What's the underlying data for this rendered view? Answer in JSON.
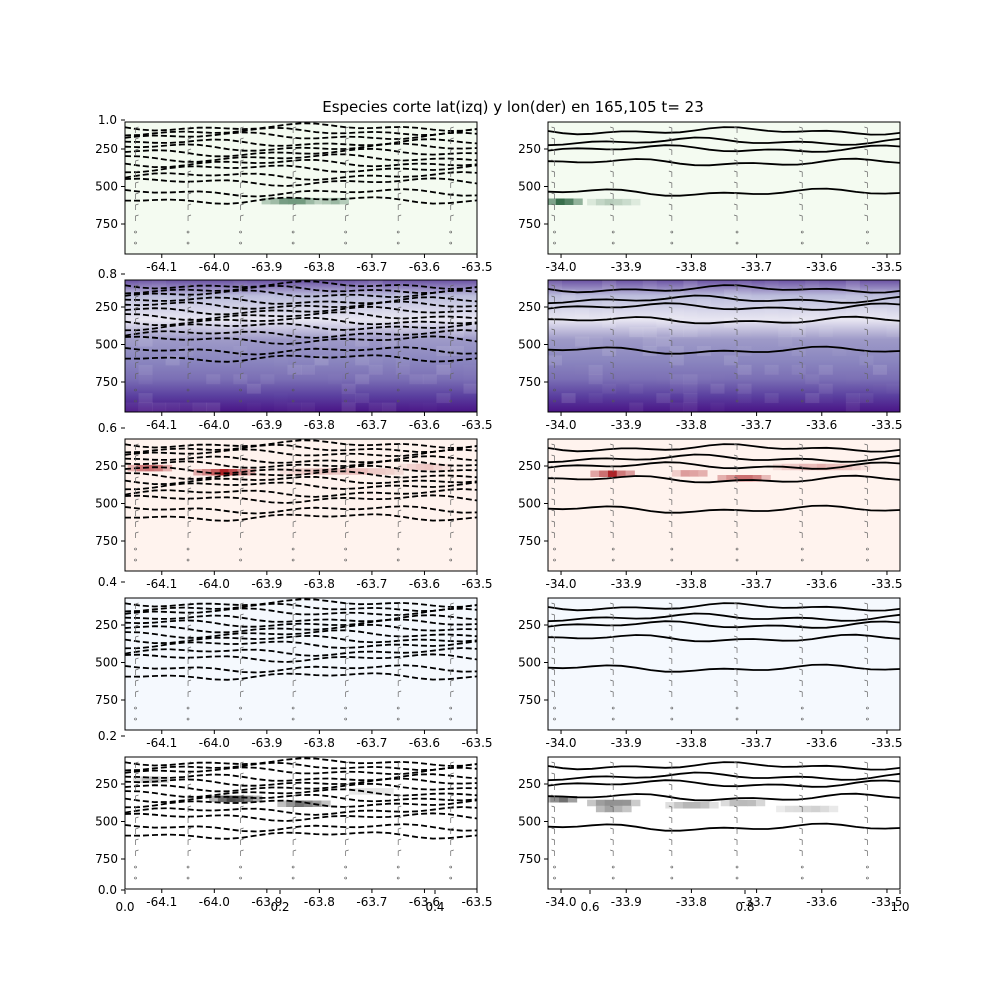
{
  "figure": {
    "title": "Especies corte lat(izq) y lon(der) en 165,105 t= 23"
  },
  "chart_data": {
    "type": "heatmap",
    "title": "Especies corte lat(izq) y lon(der) en 165,105 t= 23",
    "overlay_axis": {
      "yticks": [
        "0.0",
        "0.2",
        "0.4",
        "0.6",
        "0.8",
        "1.0"
      ],
      "xticks": [
        "0.0",
        "0.2",
        "0.4",
        "0.6",
        "0.8",
        "1.0"
      ]
    },
    "left_x_ticks": [
      "-64.1",
      "-64.0",
      "-63.9",
      "-63.8",
      "-63.7",
      "-63.6",
      "-63.5"
    ],
    "left_xlim": [
      -64.17,
      -63.5
    ],
    "right_x_ticks": [
      "-34.0",
      "-33.9",
      "-33.8",
      "-33.7",
      "-33.6",
      "-33.5"
    ],
    "right_xlim": [
      -34.02,
      -33.48
    ],
    "y_ticks": [
      "250",
      "500",
      "750"
    ],
    "ylim": [
      950,
      70
    ],
    "rows": [
      {
        "colormap": "Greens",
        "base": "#f4fbf1",
        "accent": "#00441b",
        "left_blobs": [
          {
            "x": -63.85,
            "y": 590,
            "w": 0.12,
            "h": 28,
            "v": 0.95
          },
          {
            "x": -63.77,
            "y": 590,
            "w": 0.05,
            "h": 28,
            "v": 0.7
          }
        ],
        "right_blobs": [
          {
            "x": -34.0,
            "y": 600,
            "w": 0.07,
            "h": 40,
            "v": 0.9
          },
          {
            "x": -33.92,
            "y": 600,
            "w": 0.08,
            "h": 35,
            "v": 0.35
          }
        ]
      },
      {
        "colormap": "Purples",
        "base": "#9c98c8",
        "accent": "#3f007d",
        "left_blobs": [],
        "right_blobs": []
      },
      {
        "colormap": "Reds",
        "base": "#fff3ee",
        "accent": "#a50f15",
        "left_blobs": [
          {
            "x": -64.12,
            "y": 260,
            "w": 0.09,
            "h": 35,
            "v": 0.85
          },
          {
            "x": -63.98,
            "y": 290,
            "w": 0.12,
            "h": 40,
            "v": 0.95
          },
          {
            "x": -63.75,
            "y": 280,
            "w": 0.25,
            "h": 30,
            "v": 0.35
          },
          {
            "x": -63.6,
            "y": 250,
            "w": 0.1,
            "h": 30,
            "v": 0.3
          }
        ],
        "right_blobs": [
          {
            "x": -33.92,
            "y": 300,
            "w": 0.07,
            "h": 40,
            "v": 0.95
          },
          {
            "x": -33.8,
            "y": 290,
            "w": 0.06,
            "h": 25,
            "v": 0.8
          },
          {
            "x": -33.72,
            "y": 330,
            "w": 0.08,
            "h": 40,
            "v": 0.85
          },
          {
            "x": -33.6,
            "y": 250,
            "w": 0.15,
            "h": 30,
            "v": 0.4
          }
        ]
      },
      {
        "colormap": "Blues",
        "base": "#f5f9fe",
        "accent": "#08306b",
        "left_blobs": [],
        "right_blobs": []
      },
      {
        "colormap": "Greys",
        "base": "#ffffff",
        "accent": "#000000",
        "left_blobs": [
          {
            "x": -64.12,
            "y": 220,
            "w": 0.07,
            "h": 40,
            "v": 0.35
          },
          {
            "x": -63.96,
            "y": 350,
            "w": 0.1,
            "h": 45,
            "v": 0.95
          },
          {
            "x": -63.83,
            "y": 380,
            "w": 0.1,
            "h": 40,
            "v": 0.7
          },
          {
            "x": -63.7,
            "y": 290,
            "w": 0.12,
            "h": 25,
            "v": 0.25
          }
        ],
        "right_blobs": [
          {
            "x": -34.0,
            "y": 360,
            "w": 0.06,
            "h": 60,
            "v": 0.9
          },
          {
            "x": -33.92,
            "y": 390,
            "w": 0.08,
            "h": 70,
            "v": 0.85
          },
          {
            "x": -33.8,
            "y": 400,
            "w": 0.08,
            "h": 60,
            "v": 0.5
          },
          {
            "x": -33.72,
            "y": 380,
            "w": 0.07,
            "h": 50,
            "v": 0.4
          },
          {
            "x": -33.62,
            "y": 420,
            "w": 0.1,
            "h": 50,
            "v": 0.25
          }
        ]
      }
    ],
    "contours_left": {
      "style": "dashed",
      "levels_y": [
        105,
        135,
        165,
        210,
        240,
        275,
        310,
        345,
        380,
        430,
        470,
        540,
        590
      ]
    },
    "contours_right": {
      "style": "solid",
      "levels_y": [
        130,
        200,
        250,
        340,
        540
      ]
    },
    "wind_barbs": {
      "left_x": [
        -64.15,
        -64.05,
        -63.95,
        -63.85,
        -63.75,
        -63.65,
        -63.55
      ],
      "right_x": [
        -34.01,
        -33.92,
        -33.83,
        -33.73,
        -33.63,
        -33.53
      ]
    }
  }
}
